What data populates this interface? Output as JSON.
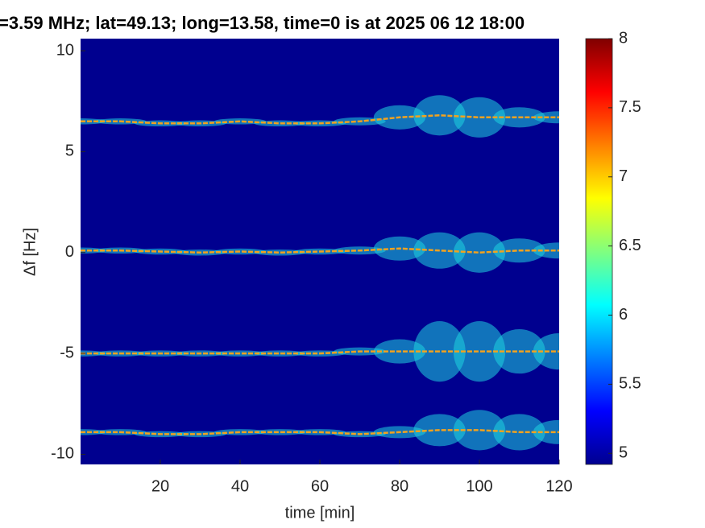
{
  "chart_data": {
    "type": "heatmap",
    "title": "=3.59 MHz;  lat=49.13; long=13.58, time=0 is at 2025 06 12 18:00",
    "x_label": "time [min]",
    "y_label": "Δf [Hz]",
    "xlim": [
      0,
      120
    ],
    "xticks": [
      20,
      40,
      60,
      80,
      100,
      120
    ],
    "ylim": [
      -10.5,
      10.6
    ],
    "yticks": [
      -10,
      -5,
      0,
      5,
      10
    ],
    "clim": [
      4.92,
      8
    ],
    "cticks": [
      5,
      5.5,
      6,
      6.5,
      7,
      7.5,
      8
    ],
    "colormap": "jet",
    "background_color": "#00008f",
    "band_color": "#1fd2e0",
    "line_color": "#f2a21f",
    "x": [
      0,
      10,
      20,
      30,
      40,
      50,
      60,
      70,
      80,
      90,
      100,
      110,
      120
    ],
    "series": [
      {
        "values": [
          6.5,
          6.5,
          6.4,
          6.4,
          6.5,
          6.4,
          6.4,
          6.5,
          6.7,
          6.8,
          6.7,
          6.7,
          6.7
        ],
        "spread": [
          0.15,
          0.15,
          0.15,
          0.15,
          0.15,
          0.15,
          0.15,
          0.2,
          0.6,
          1.0,
          1.0,
          0.5,
          0.3
        ]
      },
      {
        "values": [
          0.1,
          0.1,
          0.05,
          0.0,
          0.05,
          0.0,
          0.05,
          0.1,
          0.2,
          0.1,
          0.0,
          0.1,
          0.1
        ],
        "spread": [
          0.15,
          0.15,
          0.15,
          0.15,
          0.15,
          0.15,
          0.15,
          0.2,
          0.6,
          0.9,
          1.0,
          0.6,
          0.4
        ]
      },
      {
        "values": [
          -5.0,
          -5.0,
          -5.0,
          -5.0,
          -5.0,
          -5.0,
          -5.0,
          -4.9,
          -4.9,
          -4.9,
          -4.9,
          -4.9,
          -4.9
        ],
        "spread": [
          0.15,
          0.15,
          0.15,
          0.15,
          0.15,
          0.15,
          0.15,
          0.2,
          0.6,
          1.5,
          1.5,
          1.1,
          0.9
        ]
      },
      {
        "values": [
          -8.9,
          -8.9,
          -9.0,
          -9.0,
          -8.9,
          -8.9,
          -8.9,
          -9.0,
          -8.9,
          -8.8,
          -8.8,
          -8.9,
          -8.9
        ],
        "spread": [
          0.15,
          0.15,
          0.15,
          0.15,
          0.15,
          0.15,
          0.15,
          0.15,
          0.3,
          0.8,
          1.0,
          0.9,
          0.6
        ]
      }
    ]
  }
}
